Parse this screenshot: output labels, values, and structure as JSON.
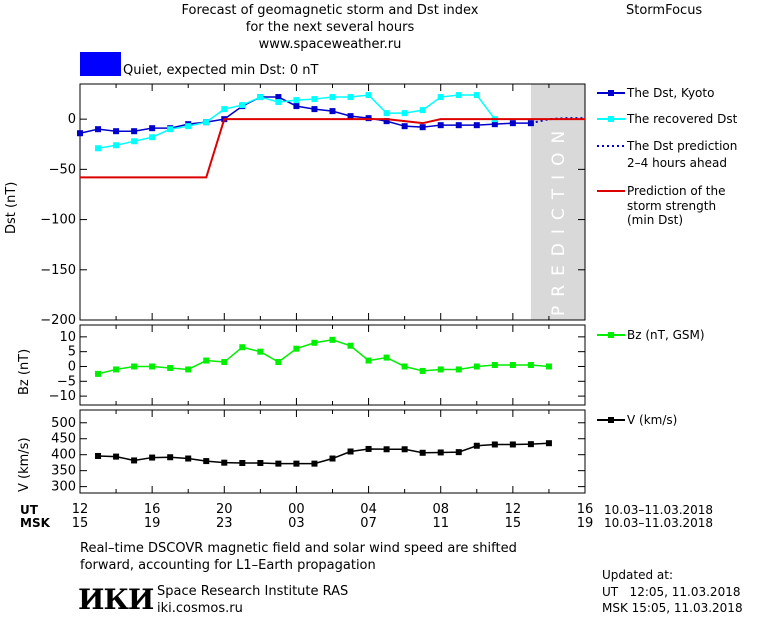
{
  "header": {
    "title_line1": "Forecast of geomagnetic storm and Dst index",
    "title_line2": "for the next several hours",
    "title_line3": "www.spaceweather.ru",
    "brand": "StormFocus"
  },
  "status": {
    "text": "Quiet, expected min Dst: 0 nT",
    "color": "#0000ff"
  },
  "dst_panel": {
    "ylabel": "Dst (nT)",
    "yticks": [
      "0",
      "−50",
      "−100",
      "−150",
      "−200"
    ],
    "prediction_label": "PREDICTION"
  },
  "bz_panel": {
    "ylabel": "Bz (nT)",
    "yticks": [
      "10",
      "5",
      "0",
      "−5",
      "−10"
    ]
  },
  "v_panel": {
    "ylabel": "V (km/s)",
    "yticks": [
      "500",
      "450",
      "400",
      "350",
      "300"
    ]
  },
  "legend": {
    "dst_kyoto": "The Dst, Kyoto",
    "dst_recovered": "The recovered Dst",
    "dst_prediction_1": "The Dst prediction",
    "dst_prediction_2": "2–4 hours ahead",
    "storm_1": "Prediction of the",
    "storm_2": "storm strength",
    "storm_3": "(min Dst)",
    "bz": "Bz (nT, GSM)",
    "v": "V (km/s)"
  },
  "time_axis": {
    "ut_label": "UT",
    "msk_label": "MSK",
    "ut_ticks": [
      "12",
      "16",
      "20",
      "00",
      "04",
      "08",
      "12",
      "16"
    ],
    "msk_ticks": [
      "15",
      "19",
      "23",
      "03",
      "07",
      "11",
      "15",
      "19"
    ],
    "ut_range": "10.03–11.03.2018",
    "msk_range": "10.03–11.03.2018"
  },
  "footer": {
    "note_line1": "Real–time DSCOVR magnetic field and solar wind speed are shifted",
    "note_line2": "forward, accounting for L1–Earth propagation",
    "logo_text": "ИКИ",
    "institute": "Space Research Institute RAS",
    "site": "iki.cosmos.ru",
    "updated_label": "Updated at:",
    "updated_ut": "UT   12:05, 11.03.2018",
    "updated_msk": "MSK 15:05, 11.03.2018"
  },
  "chart_data": [
    {
      "type": "line",
      "panel": "dst",
      "ylabel": "Dst (nT)",
      "ylim": [
        -200,
        35
      ],
      "xlim": [
        0,
        28
      ],
      "x_unit": "hours after 10.03.2018 12:00 UT",
      "series": [
        {
          "name": "The Dst, Kyoto",
          "color": "#0000cc",
          "marker": "square",
          "x": [
            0,
            1,
            2,
            3,
            4,
            5,
            6,
            7,
            8,
            9,
            10,
            11,
            12,
            13,
            14,
            15,
            16,
            17,
            18,
            19,
            20,
            21,
            22,
            23,
            24,
            25
          ],
          "y": [
            -14,
            -10,
            -12,
            -12,
            -9,
            -9,
            -5,
            -3,
            0,
            13,
            22,
            22,
            13,
            10,
            8,
            3,
            1,
            -2,
            -7,
            -8,
            -6,
            -6,
            -6,
            -5,
            -4,
            -4
          ]
        },
        {
          "name": "The recovered Dst",
          "color": "#00ffff",
          "marker": "square",
          "x": [
            1,
            2,
            3,
            4,
            5,
            6,
            7,
            8,
            9,
            10,
            11,
            12,
            13,
            14,
            15,
            16,
            17,
            18,
            19,
            20,
            21,
            22,
            23
          ],
          "y": [
            -29,
            -26,
            -22,
            -18,
            -10,
            -7,
            -3,
            10,
            14,
            22,
            17,
            19,
            20,
            22,
            22,
            24,
            6,
            6,
            9,
            22,
            24,
            24,
            0
          ]
        },
        {
          "name": "The Dst prediction 2–4 hours ahead",
          "color": "#0000cc",
          "style": "dotted",
          "x": [
            25,
            26,
            27,
            28
          ],
          "y": [
            -4,
            0,
            1,
            1
          ]
        },
        {
          "name": "Prediction of the storm strength (min Dst)",
          "color": "#dd0000",
          "x": [
            0,
            5,
            7,
            8,
            13,
            17,
            18,
            19,
            20,
            24,
            28
          ],
          "y": [
            -58,
            -58,
            -58,
            0,
            0,
            0,
            -2,
            -4,
            0,
            0,
            0
          ]
        }
      ],
      "prediction_region": [
        25,
        28
      ]
    },
    {
      "type": "line",
      "panel": "bz",
      "ylabel": "Bz (nT)",
      "ylim": [
        -13,
        14
      ],
      "series": [
        {
          "name": "Bz (nT, GSM)",
          "color": "#00ee00",
          "marker": "square",
          "x": [
            1,
            2,
            3,
            4,
            5,
            6,
            7,
            8,
            9,
            10,
            11,
            12,
            13,
            14,
            15,
            16,
            17,
            18,
            19,
            20,
            21,
            22,
            23,
            24,
            25,
            26
          ],
          "y": [
            -2.5,
            -1,
            0,
            0,
            -0.5,
            -1,
            2,
            1.5,
            6.5,
            5,
            1.5,
            6,
            8,
            9,
            7,
            2,
            3,
            0,
            -1.5,
            -1,
            -1,
            0,
            0.5,
            0.5,
            0.5,
            0
          ]
        }
      ]
    },
    {
      "type": "line",
      "panel": "v",
      "ylabel": "V (km/s)",
      "ylim": [
        280,
        540
      ],
      "series": [
        {
          "name": "V (km/s)",
          "color": "#000000",
          "marker": "square",
          "x": [
            1,
            2,
            3,
            4,
            5,
            6,
            7,
            8,
            9,
            10,
            11,
            12,
            13,
            14,
            15,
            16,
            17,
            18,
            19,
            20,
            21,
            22,
            23,
            24,
            25,
            26
          ],
          "y": [
            396,
            394,
            382,
            391,
            392,
            388,
            380,
            375,
            374,
            374,
            372,
            372,
            372,
            388,
            410,
            418,
            417,
            417,
            406,
            407,
            408,
            428,
            432,
            432,
            433,
            436
          ]
        }
      ]
    }
  ]
}
